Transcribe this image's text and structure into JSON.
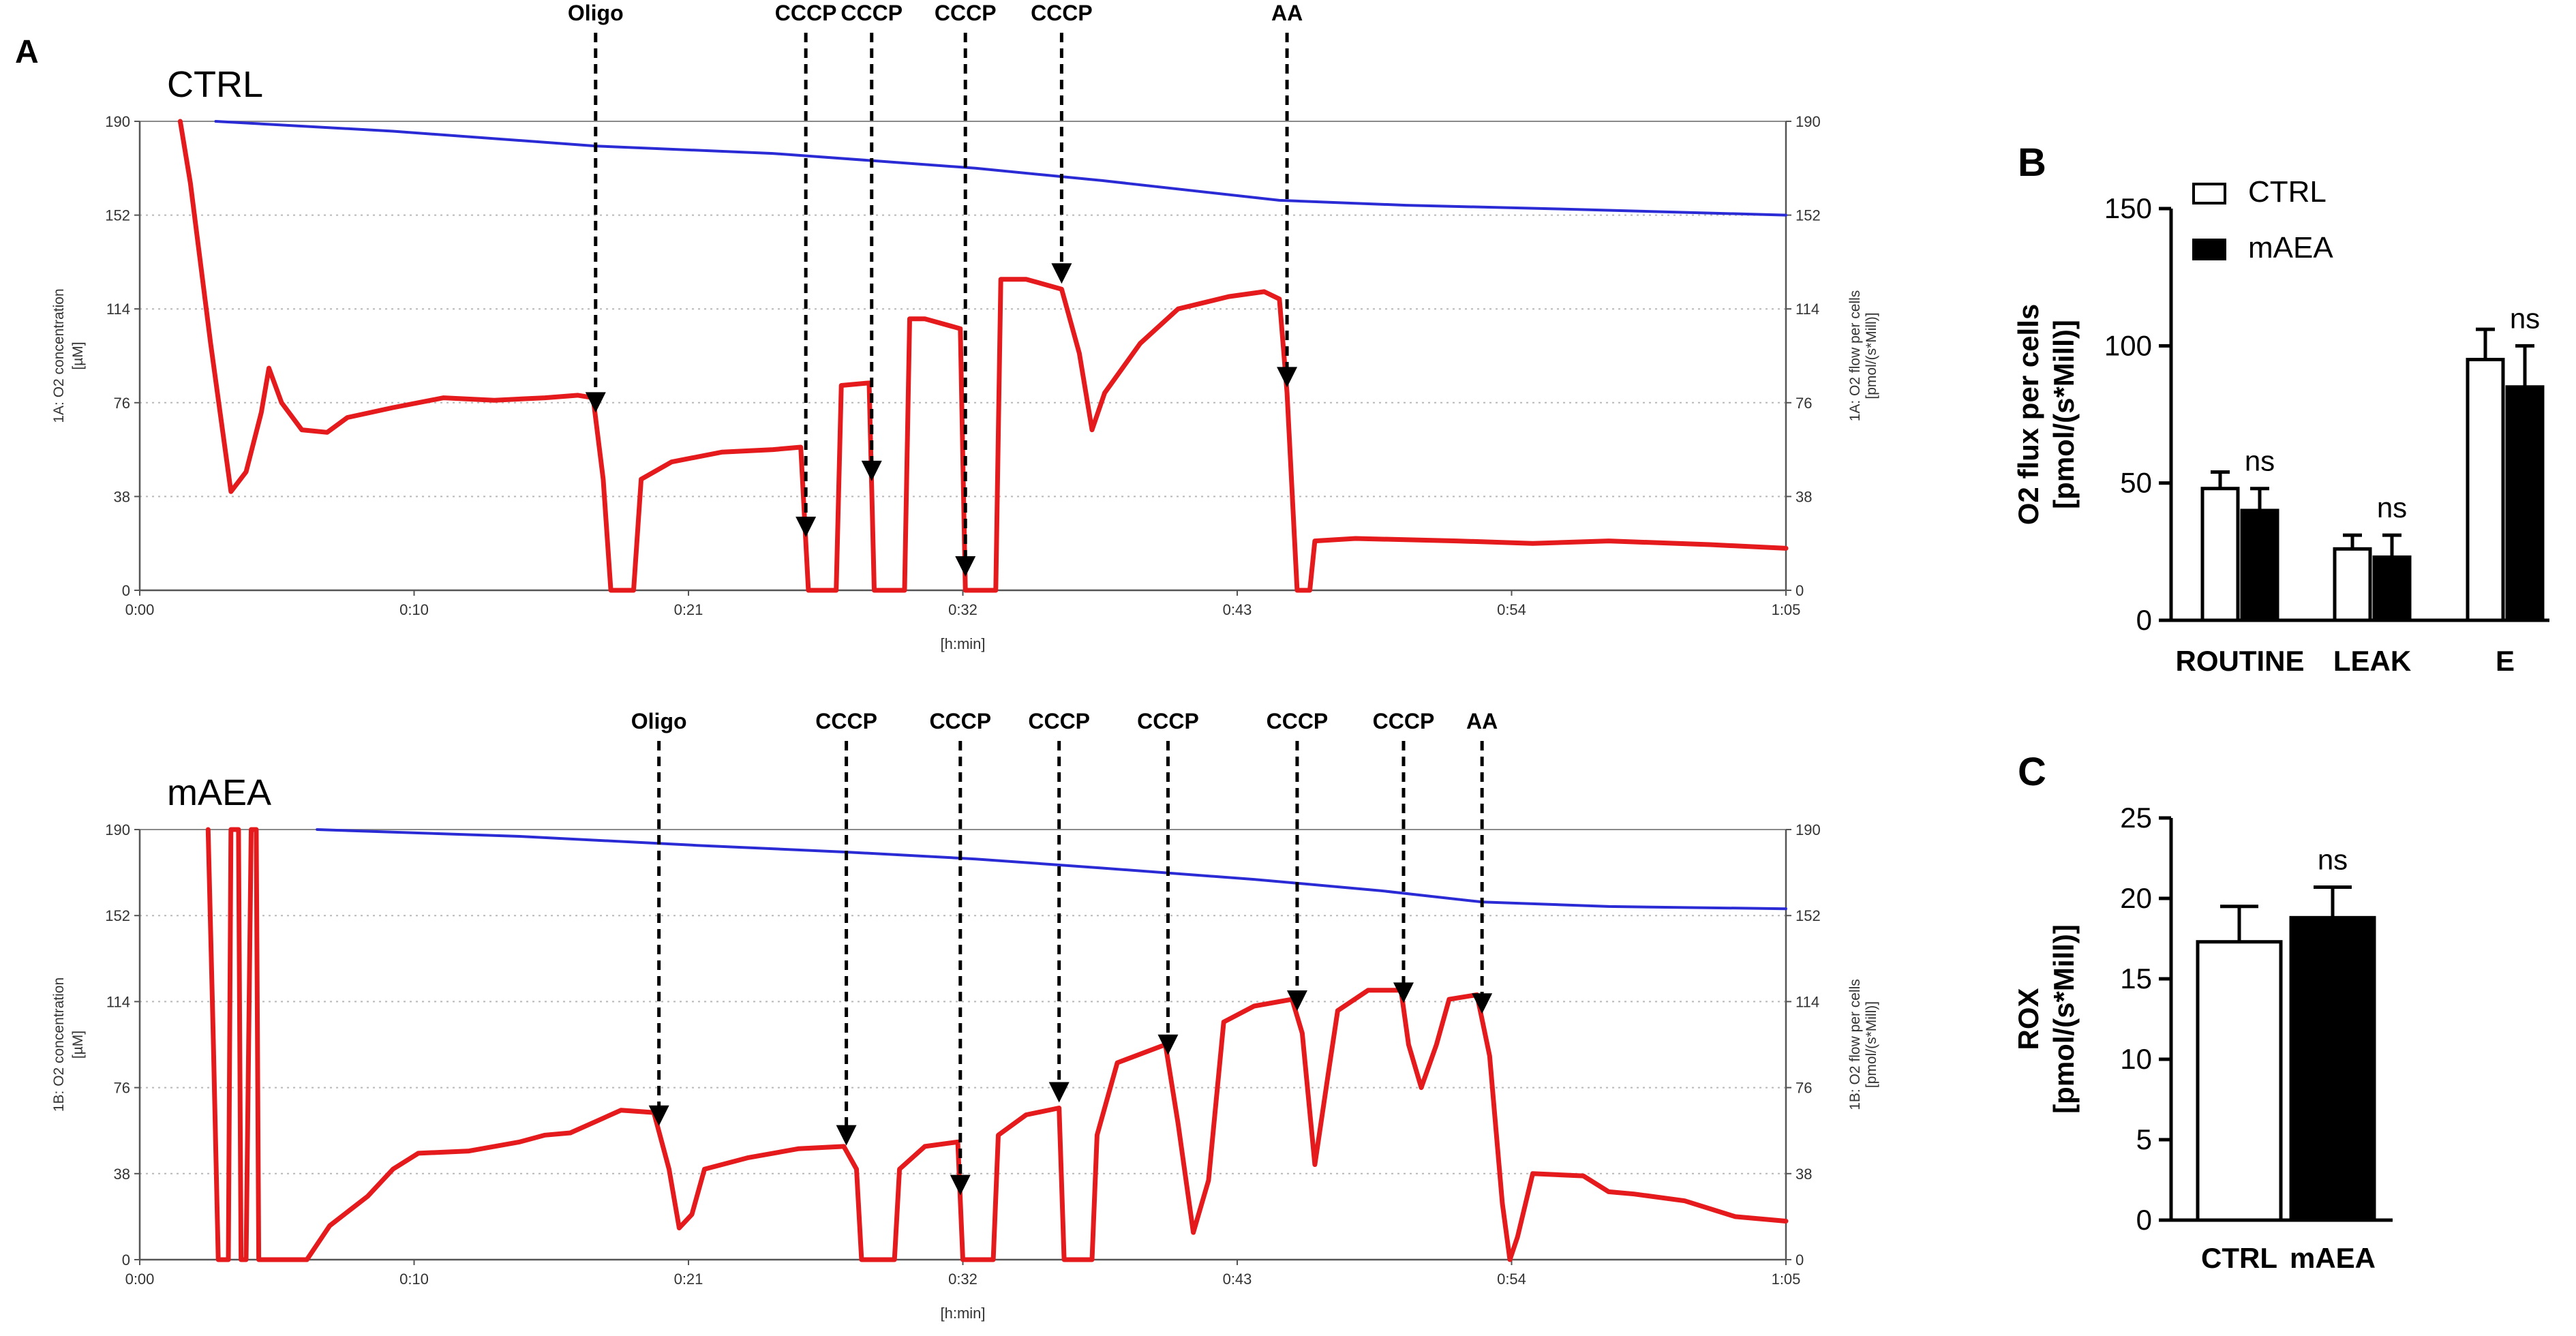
{
  "figure": {
    "panel_letters": {
      "a": "A",
      "b": "B",
      "c": "C"
    }
  },
  "chart_data": [
    {
      "id": "A-top",
      "type": "line",
      "group_label": "CTRL",
      "xlabel": "[h:min]",
      "ylabel_left": [
        "1A: O2 concentration",
        "[µM]"
      ],
      "ylabel_right": [
        "1A: O2 flow per cells",
        "[pmol/(s*Mill)]"
      ],
      "x_ticks": [
        "0:00",
        "0:10",
        "0:21",
        "0:32",
        "0:43",
        "0:54",
        "1:05"
      ],
      "y_ticks": [
        "0",
        "38",
        "76",
        "114",
        "152",
        "190"
      ],
      "xlim_min": [
        0,
        65
      ],
      "ylim": [
        0,
        190
      ],
      "grid": "horizontal-dotted",
      "events": [
        {
          "label": "Oligo",
          "t": 18.0
        },
        {
          "label": "CCCP",
          "t": 26.3
        },
        {
          "label": "CCCP",
          "t": 28.9
        },
        {
          "label": "CCCP",
          "t": 32.6
        },
        {
          "label": "CCCP",
          "t": 36.4
        },
        {
          "label": "AA",
          "t": 45.3
        }
      ],
      "series": [
        {
          "color": "#2b2bd6",
          "points": [
            [
              3,
              190
            ],
            [
              10,
              186
            ],
            [
              18,
              180
            ],
            [
              25,
              177
            ],
            [
              29,
              174
            ],
            [
              33,
              171
            ],
            [
              38,
              166
            ],
            [
              45,
              158
            ],
            [
              50,
              156
            ],
            [
              56,
              154.5
            ],
            [
              65,
              152
            ]
          ]
        },
        {
          "color": "#e41a1c",
          "points": [
            [
              1.6,
              190
            ],
            [
              2.0,
              165
            ],
            [
              2.8,
              100
            ],
            [
              3.6,
              40
            ],
            [
              4.2,
              48
            ],
            [
              4.8,
              72
            ],
            [
              5.1,
              90
            ],
            [
              5.6,
              76
            ],
            [
              6.4,
              65
            ],
            [
              7.4,
              64
            ],
            [
              8.2,
              70
            ],
            [
              10,
              74
            ],
            [
              12,
              78
            ],
            [
              14,
              77
            ],
            [
              16,
              78
            ],
            [
              17.3,
              79
            ],
            [
              17.9,
              78
            ],
            [
              18.3,
              45
            ],
            [
              18.6,
              0
            ],
            [
              19.5,
              0
            ],
            [
              19.8,
              45
            ],
            [
              21,
              52
            ],
            [
              23,
              56
            ],
            [
              25,
              57
            ],
            [
              26.1,
              58
            ],
            [
              26.4,
              0
            ],
            [
              27.5,
              0
            ],
            [
              27.7,
              83
            ],
            [
              28.8,
              84
            ],
            [
              29.0,
              0
            ],
            [
              30.2,
              0
            ],
            [
              30.4,
              110
            ],
            [
              31.0,
              110
            ],
            [
              32.4,
              106
            ],
            [
              32.6,
              0
            ],
            [
              33.8,
              0
            ],
            [
              34.0,
              126
            ],
            [
              35.0,
              126
            ],
            [
              36.4,
              122
            ],
            [
              37.1,
              96
            ],
            [
              37.6,
              65
            ],
            [
              38.1,
              80
            ],
            [
              39.5,
              100
            ],
            [
              41,
              114
            ],
            [
              43,
              119
            ],
            [
              44.4,
              121
            ],
            [
              45.0,
              118
            ],
            [
              45.3,
              80
            ],
            [
              45.7,
              0
            ],
            [
              46.2,
              0
            ],
            [
              46.4,
              20
            ],
            [
              48,
              21
            ],
            [
              52,
              20
            ],
            [
              55,
              19
            ],
            [
              58,
              20
            ],
            [
              62,
              18.5
            ],
            [
              65,
              17
            ]
          ]
        }
      ]
    },
    {
      "id": "A-bottom",
      "type": "line",
      "group_label": "mAEA",
      "xlabel": "[h:min]",
      "ylabel_left": [
        "1B: O2 concentration",
        "[µM]"
      ],
      "ylabel_right": [
        "1B: O2 flow per cells",
        "[pmol/(s*Mill)]"
      ],
      "x_ticks": [
        "0:00",
        "0:10",
        "0:21",
        "0:32",
        "0:43",
        "0:54",
        "1:05"
      ],
      "y_ticks": [
        "0",
        "38",
        "76",
        "114",
        "152",
        "190"
      ],
      "xlim_min": [
        0,
        65
      ],
      "ylim": [
        0,
        190
      ],
      "grid": "horizontal-dotted",
      "events": [
        {
          "label": "Oligo",
          "t": 20.5
        },
        {
          "label": "CCCP",
          "t": 27.9
        },
        {
          "label": "CCCP",
          "t": 32.4
        },
        {
          "label": "CCCP",
          "t": 36.3
        },
        {
          "label": "CCCP",
          "t": 40.6
        },
        {
          "label": "CCCP",
          "t": 45.7
        },
        {
          "label": "CCCP",
          "t": 49.9
        },
        {
          "label": "AA",
          "t": 53.0
        }
      ],
      "series": [
        {
          "color": "#2b2bd6",
          "points": [
            [
              7,
              190
            ],
            [
              15,
              187
            ],
            [
              22,
              183
            ],
            [
              28,
              180
            ],
            [
              33,
              177
            ],
            [
              38,
              173
            ],
            [
              44,
              168
            ],
            [
              49,
              163
            ],
            [
              53,
              158
            ],
            [
              58,
              156
            ],
            [
              65,
              155
            ]
          ]
        },
        {
          "color": "#e41a1c",
          "points": [
            [
              2.7,
              190
            ],
            [
              2.9,
              100
            ],
            [
              3.1,
              0
            ],
            [
              3.5,
              0
            ],
            [
              3.6,
              190
            ],
            [
              3.9,
              190
            ],
            [
              4.0,
              0
            ],
            [
              4.2,
              0
            ],
            [
              4.4,
              190
            ],
            [
              4.6,
              190
            ],
            [
              4.7,
              0
            ],
            [
              6.6,
              0
            ],
            [
              7.5,
              15
            ],
            [
              9,
              28
            ],
            [
              10,
              40
            ],
            [
              11,
              47
            ],
            [
              13,
              48
            ],
            [
              15,
              52
            ],
            [
              16,
              55
            ],
            [
              17,
              56
            ],
            [
              18,
              61
            ],
            [
              19,
              66
            ],
            [
              20.3,
              65
            ],
            [
              20.9,
              40
            ],
            [
              21.3,
              14
            ],
            [
              21.8,
              20
            ],
            [
              22.3,
              40
            ],
            [
              24,
              45
            ],
            [
              26,
              49
            ],
            [
              27.8,
              50
            ],
            [
              28.3,
              40
            ],
            [
              28.5,
              0
            ],
            [
              29.8,
              0
            ],
            [
              30.0,
              40
            ],
            [
              31,
              50
            ],
            [
              32.3,
              52
            ],
            [
              32.5,
              0
            ],
            [
              33.7,
              0
            ],
            [
              33.9,
              55
            ],
            [
              35,
              64
            ],
            [
              36.3,
              67
            ],
            [
              36.5,
              0
            ],
            [
              37.6,
              0
            ],
            [
              37.8,
              55
            ],
            [
              38.6,
              87
            ],
            [
              40.5,
              95
            ],
            [
              41.0,
              60
            ],
            [
              41.6,
              12
            ],
            [
              42.2,
              35
            ],
            [
              42.8,
              105
            ],
            [
              44,
              112
            ],
            [
              45.5,
              115
            ],
            [
              45.9,
              100
            ],
            [
              46.4,
              42
            ],
            [
              46.9,
              80
            ],
            [
              47.3,
              110
            ],
            [
              48.5,
              119
            ],
            [
              49.8,
              119
            ],
            [
              50.1,
              95
            ],
            [
              50.6,
              76
            ],
            [
              51.2,
              95
            ],
            [
              51.7,
              115
            ],
            [
              52.8,
              117
            ],
            [
              53.3,
              90
            ],
            [
              53.8,
              25
            ],
            [
              54.1,
              0
            ],
            [
              54.4,
              10
            ],
            [
              55,
              38
            ],
            [
              57,
              37
            ],
            [
              58,
              30
            ],
            [
              59,
              29
            ],
            [
              61,
              26
            ],
            [
              63,
              19
            ],
            [
              65,
              17
            ]
          ]
        }
      ]
    },
    {
      "id": "B",
      "type": "bar",
      "ylabel": [
        "O2 flux per cells",
        "[pmol/(s*Mill)]"
      ],
      "categories": [
        "ROUTINE",
        "LEAK",
        "E"
      ],
      "ylim": [
        0,
        150
      ],
      "y_ticks": [
        "0",
        "50",
        "100",
        "150"
      ],
      "legend_position": "top-left",
      "series": [
        {
          "name": "CTRL",
          "fill": "#ffffff",
          "values": [
            48,
            26,
            95
          ],
          "errors": [
            6,
            5,
            11
          ]
        },
        {
          "name": "mAEA",
          "fill": "#000000",
          "values": [
            40,
            23,
            85
          ],
          "errors": [
            8,
            8,
            15
          ]
        }
      ],
      "annotations": [
        "ns",
        "ns",
        "ns"
      ]
    },
    {
      "id": "C",
      "type": "bar",
      "ylabel": [
        "ROX",
        "[pmol/(s*Mill)]"
      ],
      "categories": [
        "CTRL",
        "mAEA"
      ],
      "ylim": [
        0,
        25
      ],
      "y_ticks": [
        "0",
        "5",
        "10",
        "15",
        "20",
        "25"
      ],
      "values": [
        17.3,
        18.8
      ],
      "errors": [
        2.2,
        1.9
      ],
      "fills": [
        "#ffffff",
        "#000000"
      ],
      "annotations": [
        "ns"
      ]
    }
  ]
}
